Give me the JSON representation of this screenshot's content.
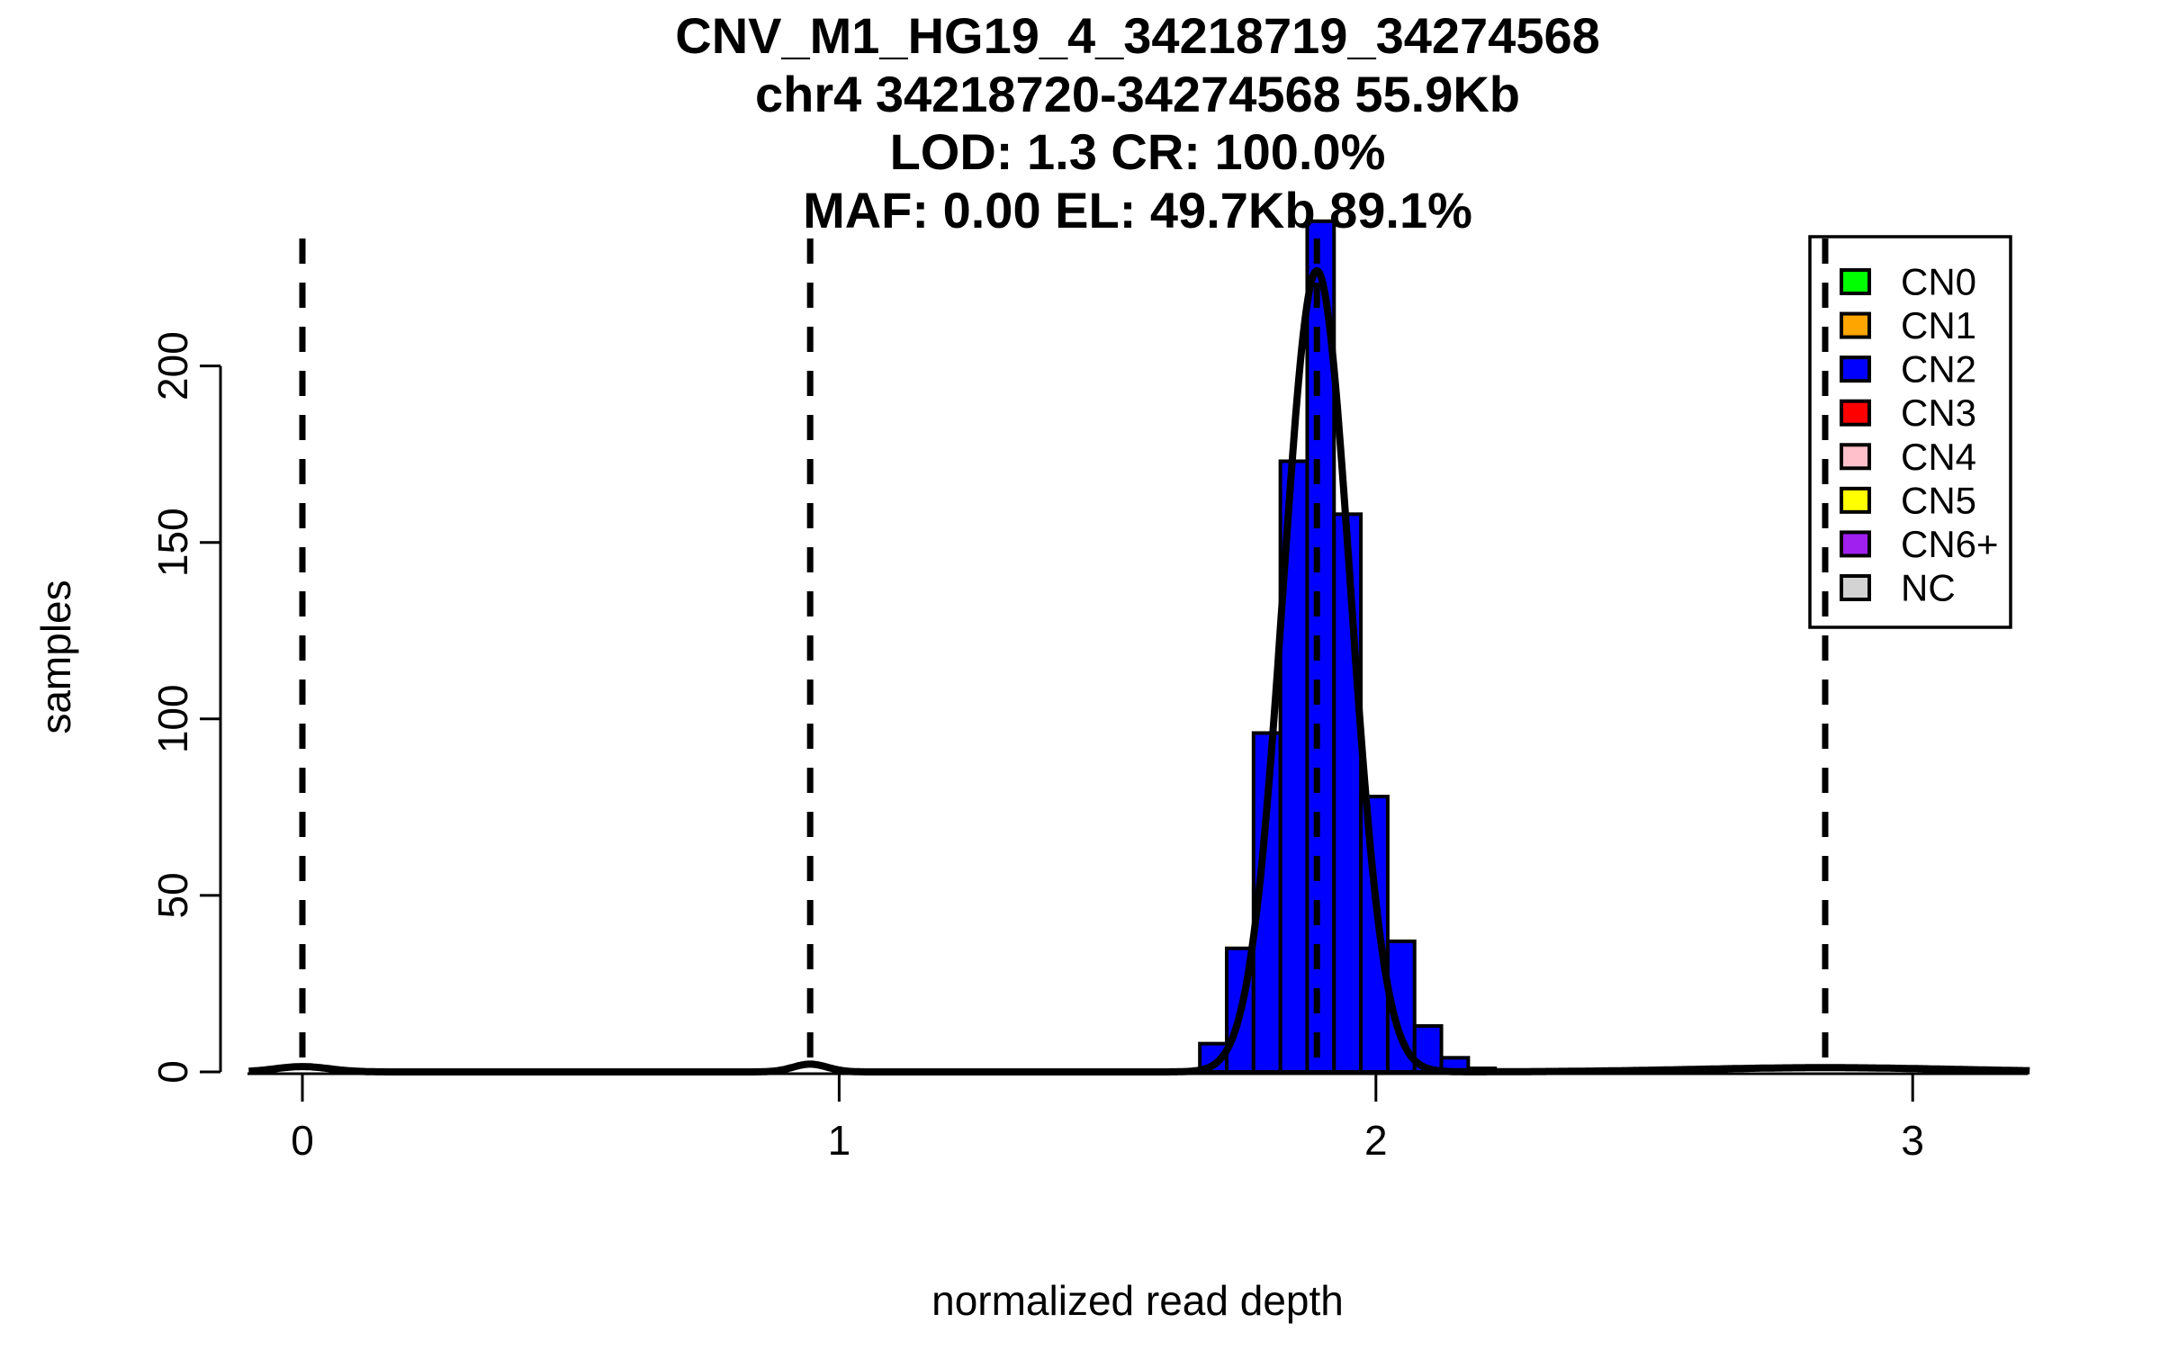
{
  "title": {
    "lines": [
      "CNV_M1_HG19_4_34218719_34274568",
      "chr4 34218720-34274568 55.9Kb",
      "LOD: 1.3 CR: 100.0%",
      "MAF: 0.00 EL: 49.7Kb 89.1%"
    ]
  },
  "chart_data": {
    "type": "bar",
    "subtype": "histogram-with-density-curve",
    "title": "CNV_M1_HG19_4_34218719_34274568 / chr4 34218720-34274568 55.9Kb / LOD: 1.3 CR: 100.0% / MAF: 0.00 EL: 49.7Kb 89.1%",
    "xlabel": "normalized read depth",
    "ylabel": "samples",
    "x_ticks": [
      0,
      1,
      2,
      3
    ],
    "y_ticks": [
      0,
      50,
      100,
      150,
      200
    ],
    "xlim": [
      -0.1,
      3.22
    ],
    "ylim": [
      0,
      236
    ],
    "grid": false,
    "bins": {
      "start": 1.672,
      "width": 0.05,
      "edges": [
        1.672,
        1.722,
        1.772,
        1.822,
        1.872,
        1.922,
        1.972,
        2.022,
        2.072,
        2.122,
        2.172,
        2.222
      ],
      "counts": [
        8,
        35,
        96,
        173,
        241,
        158,
        78,
        37,
        13,
        4,
        1
      ]
    },
    "bar_fill": "#0000ff",
    "bar_stroke": "#000000",
    "dashed_mean_lines_x": [
      0,
      0.946,
      1.89,
      2.837
    ],
    "density_curve": {
      "color": "#000000",
      "components": [
        {
          "mean": 1.89,
          "sd": 0.0625,
          "peak": 227
        },
        {
          "mean": 0.946,
          "sd": 0.032,
          "peak": 2.2
        },
        {
          "mean": 0.0,
          "sd": 0.05,
          "peak": 1.5
        },
        {
          "mean": 2.837,
          "sd": 0.24,
          "peak": 1.2
        }
      ]
    },
    "legend": {
      "position": "top-right",
      "items": [
        {
          "label": "CN0",
          "color": "#00ff00"
        },
        {
          "label": "CN1",
          "color": "#ffa500"
        },
        {
          "label": "CN2",
          "color": "#0000ff"
        },
        {
          "label": "CN3",
          "color": "#ff0000"
        },
        {
          "label": "CN4",
          "color": "#ffc0cb"
        },
        {
          "label": "CN5",
          "color": "#ffff00"
        },
        {
          "label": "CN6+",
          "color": "#a020f0"
        },
        {
          "label": "NC",
          "color": "#d3d3d3"
        }
      ]
    }
  }
}
